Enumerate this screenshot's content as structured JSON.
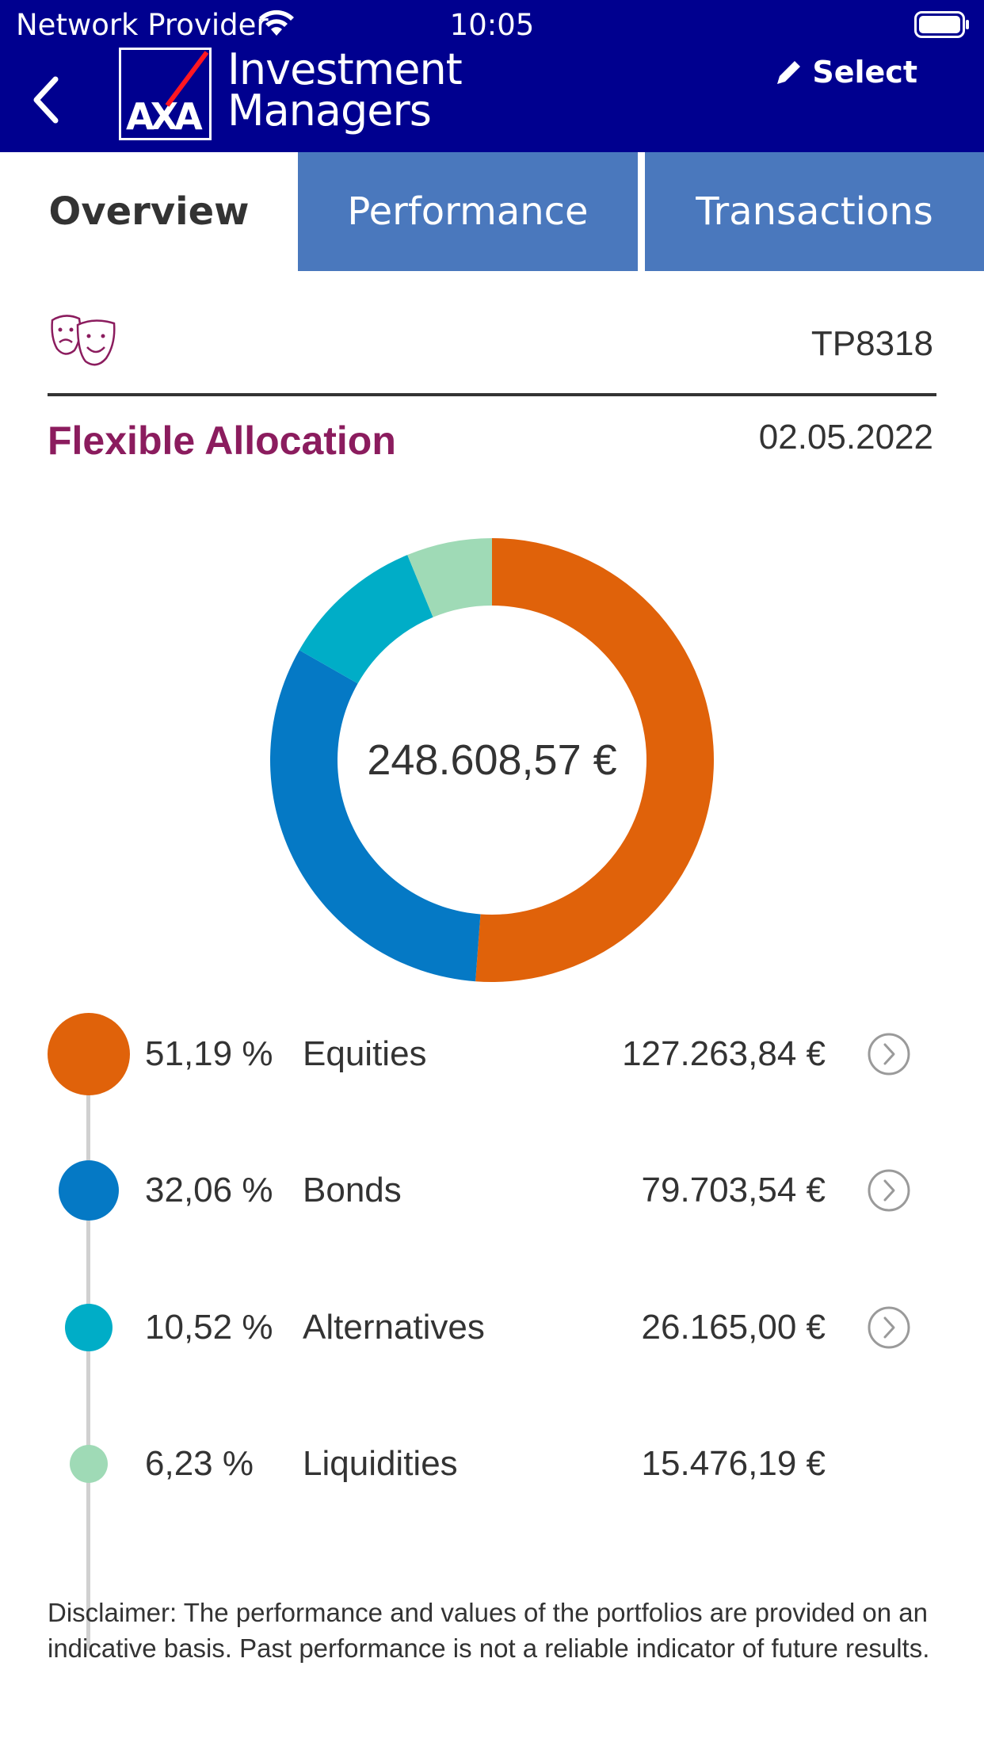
{
  "status_bar": {
    "carrier": "Network Provider",
    "time": "10:05"
  },
  "header": {
    "brand_line1": "Investment",
    "brand_line2": "Managers",
    "logo_text": "AXA",
    "select_label": "Select"
  },
  "tabs": [
    {
      "label": "Overview",
      "active": true
    },
    {
      "label": "Performance",
      "active": false
    },
    {
      "label": "Transactions",
      "active": false
    }
  ],
  "portfolio": {
    "id": "TP8318",
    "name": "Flexible Allocation",
    "date": "02.05.2022",
    "total": "248.608,57 €"
  },
  "chart_data": {
    "type": "pie",
    "categories": [
      "Equities",
      "Bonds",
      "Alternatives",
      "Liquidities"
    ],
    "values": [
      51.19,
      32.06,
      10.52,
      6.23
    ],
    "colors": [
      "#e0620a",
      "#0579c5",
      "#00adc7",
      "#9fdab6"
    ]
  },
  "allocation": [
    {
      "pct": "51,19 %",
      "name": "Equities",
      "value": "127.263,84 €",
      "color": "#e0620a",
      "has_detail": true
    },
    {
      "pct": "32,06 %",
      "name": "Bonds",
      "value": "79.703,54 €",
      "color": "#0579c5",
      "has_detail": true
    },
    {
      "pct": "10,52 %",
      "name": "Alternatives",
      "value": "26.165,00 €",
      "color": "#00adc7",
      "has_detail": true
    },
    {
      "pct": "6,23 %",
      "name": "Liquidities",
      "value": "15.476,19 €",
      "color": "#9fdab6",
      "has_detail": false
    }
  ],
  "disclaimer": "Disclaimer: The performance and values of the portfolios are provided on an indicative basis. Past performance is not a reliable indicator of future results.",
  "colors": {
    "header_bg": "#00008f",
    "tab_inactive_bg": "#4a78bd",
    "portfolio_name": "#8b1c5e",
    "axa_red": "#ff1721"
  },
  "icons": {
    "back": "chevron-left-icon",
    "select": "pencil-icon",
    "portfolio_type": "theater-masks-icon",
    "row_detail": "chevron-right-circle-icon"
  }
}
